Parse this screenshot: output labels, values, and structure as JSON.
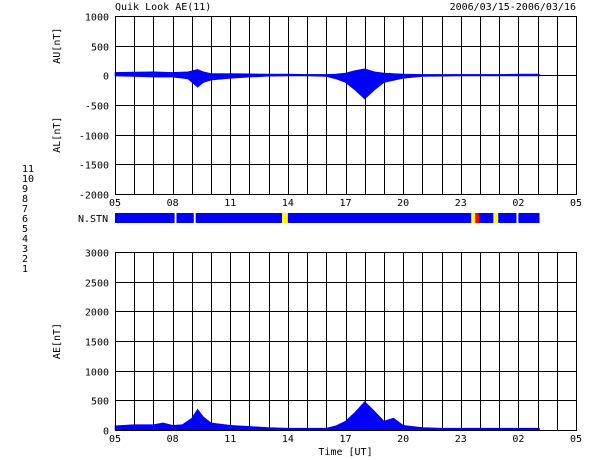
{
  "header": {
    "title": "Quik Look AE(11)",
    "date_range": "2006/03/15-2006/03/16"
  },
  "station_legend": {
    "labels": [
      "11",
      "10",
      "9",
      "8",
      "7",
      "6",
      "5",
      "4",
      "3",
      "2",
      "1"
    ],
    "colors": [
      "#00d0d0",
      "#ff00ff",
      "#0000ff",
      "#ffff00",
      "#00c000",
      "#ff0000",
      "#ff8080",
      "#e0e0e0",
      "#00a0a0",
      "#8000ff",
      "#0000c0"
    ]
  },
  "chart_data": [
    {
      "type": "area",
      "name": "AU/AL",
      "ylabel_top": "AU[nT]",
      "ylabel_bottom": "AL[nT]",
      "xlabel": "",
      "xlim": [
        5,
        29
      ],
      "ylim": [
        -2000,
        1000
      ],
      "yticks": [
        1000,
        500,
        0,
        -500,
        -1000,
        -1500,
        -2000
      ],
      "xtick_labels": [
        "05",
        "08",
        "11",
        "14",
        "17",
        "20",
        "23",
        "02",
        "05"
      ],
      "xtick_hours": [
        5,
        8,
        11,
        14,
        17,
        20,
        23,
        26,
        29
      ],
      "data_end_hour": 27.1,
      "color": "#0000ff",
      "grid": true,
      "series": [
        {
          "name": "AU",
          "x": [
            5.0,
            6.0,
            7.0,
            8.0,
            8.8,
            9.3,
            9.6,
            10.0,
            11.0,
            12.0,
            13.0,
            14.0,
            15.0,
            16.0,
            16.5,
            17.0,
            17.5,
            18.0,
            18.5,
            19.0,
            20.0,
            21.0,
            22.0,
            23.0,
            24.0,
            25.0,
            26.0,
            27.1
          ],
          "values": [
            50,
            55,
            60,
            50,
            60,
            100,
            60,
            30,
            30,
            25,
            20,
            20,
            15,
            15,
            20,
            40,
            80,
            110,
            60,
            40,
            20,
            15,
            15,
            15,
            15,
            15,
            20,
            20
          ]
        },
        {
          "name": "AL",
          "x": [
            5.0,
            6.0,
            7.0,
            8.0,
            8.8,
            9.3,
            9.6,
            10.0,
            11.0,
            12.0,
            13.0,
            14.0,
            15.0,
            16.0,
            16.5,
            17.0,
            17.5,
            18.0,
            18.5,
            19.0,
            20.0,
            21.0,
            22.0,
            23.0,
            24.0,
            25.0,
            26.0,
            27.1
          ],
          "values": [
            -10,
            -20,
            -30,
            -30,
            -60,
            -200,
            -120,
            -80,
            -50,
            -30,
            -15,
            -10,
            -10,
            -20,
            -60,
            -120,
            -250,
            -400,
            -250,
            -120,
            -50,
            -20,
            -15,
            -10,
            -10,
            -10,
            -10,
            -10
          ]
        }
      ]
    },
    {
      "type": "bar",
      "name": "N.STN",
      "label": "N.STN",
      "base_color": "#0000ff",
      "segments": [
        {
          "start": 5.0,
          "end": 8.1,
          "color": "#0000ff"
        },
        {
          "start": 8.2,
          "end": 9.1,
          "color": "#0000ff"
        },
        {
          "start": 9.2,
          "end": 13.7,
          "color": "#0000ff"
        },
        {
          "start": 13.7,
          "end": 14.0,
          "color": "#ffff00"
        },
        {
          "start": 14.0,
          "end": 23.55,
          "color": "#0000ff"
        },
        {
          "start": 23.55,
          "end": 23.75,
          "color": "#ffff00"
        },
        {
          "start": 23.75,
          "end": 23.95,
          "color": "#ff0000"
        },
        {
          "start": 23.95,
          "end": 24.7,
          "color": "#0000ff"
        },
        {
          "start": 24.7,
          "end": 24.9,
          "color": "#ffff00"
        },
        {
          "start": 24.95,
          "end": 25.9,
          "color": "#0000ff"
        },
        {
          "start": 26.0,
          "end": 27.1,
          "color": "#0000ff"
        }
      ]
    },
    {
      "type": "area",
      "name": "AE",
      "ylabel": "AE[nT]",
      "xlabel": "Time [UT]",
      "xlim": [
        5,
        29
      ],
      "ylim": [
        0,
        3000
      ],
      "yticks": [
        3000,
        2500,
        2000,
        1500,
        1000,
        500,
        0
      ],
      "xtick_labels": [
        "05",
        "08",
        "11",
        "14",
        "17",
        "20",
        "23",
        "02",
        "05"
      ],
      "xtick_hours": [
        5,
        8,
        11,
        14,
        17,
        20,
        23,
        26,
        29
      ],
      "color": "#0000ff",
      "grid": true,
      "x": [
        5.0,
        6.0,
        7.0,
        7.5,
        8.0,
        8.5,
        9.0,
        9.3,
        9.6,
        10.0,
        11.0,
        12.0,
        13.0,
        14.0,
        15.0,
        16.0,
        16.5,
        17.0,
        17.5,
        18.0,
        18.5,
        19.0,
        19.5,
        20.0,
        21.0,
        22.0,
        23.0,
        24.0,
        25.0,
        26.0,
        27.1
      ],
      "values": [
        70,
        90,
        90,
        120,
        80,
        90,
        200,
        350,
        220,
        120,
        80,
        60,
        40,
        30,
        30,
        30,
        70,
        150,
        300,
        480,
        320,
        150,
        200,
        80,
        40,
        30,
        30,
        30,
        30,
        30,
        30
      ]
    }
  ]
}
